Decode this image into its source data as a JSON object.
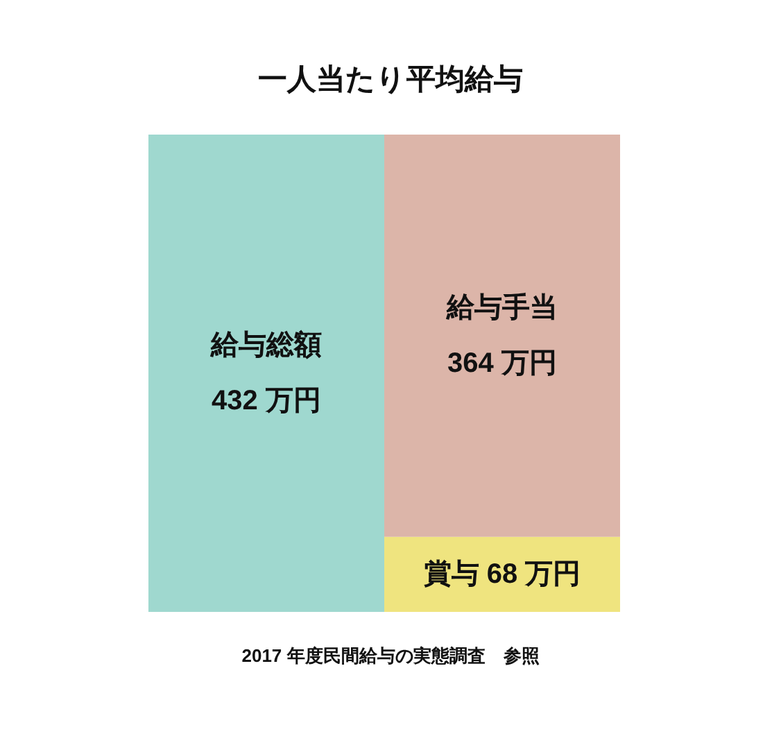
{
  "chart_data": {
    "type": "bar",
    "title": "一人当たり平均給与",
    "stacked": true,
    "tick_labels": false,
    "grid": false,
    "legend": false,
    "categories": [
      null,
      null
    ],
    "series": [
      {
        "name": "給与総額",
        "color": "#9fd8cf",
        "values": [
          432,
          null
        ],
        "value_labels": [
          "432 万円",
          null
        ]
      },
      {
        "name": "賞与",
        "color": "#efe47f",
        "values": [
          null,
          68
        ],
        "value_labels": [
          null,
          "68 万円"
        ]
      },
      {
        "name": "給与手当",
        "color": "#dcb5a9",
        "values": [
          null,
          364
        ],
        "value_labels": [
          null,
          "364 万円"
        ]
      }
    ],
    "annotations": [
      "2017 年度民間給与の実態調査　参照"
    ]
  }
}
